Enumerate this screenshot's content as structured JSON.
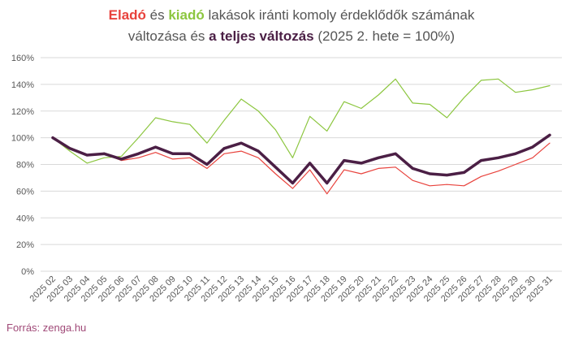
{
  "title": {
    "line1": [
      {
        "text": "Eladó",
        "color": "#e8423c",
        "bold": true
      },
      {
        "text": " és ",
        "color": "#555555",
        "bold": false
      },
      {
        "text": "kiadó",
        "color": "#8cc63f",
        "bold": true
      },
      {
        "text": " lakások iránti komoly érdeklődők számának",
        "color": "#555555",
        "bold": false
      }
    ],
    "line2": [
      {
        "text": "változása és ",
        "color": "#555555",
        "bold": false
      },
      {
        "text": "a teljes változás",
        "color": "#4b1f45",
        "bold": true
      },
      {
        "text": " (2025 2. hete = 100%)",
        "color": "#555555",
        "bold": false
      }
    ]
  },
  "source": "Forrás: zenga.hu",
  "chart_data": {
    "type": "line",
    "categories": [
      "2025 02",
      "2025 03",
      "2025 04",
      "2025 05",
      "2025 06",
      "2025 07",
      "2025 08",
      "2025 09",
      "2025 10",
      "2025 11",
      "2025 12",
      "2025 13",
      "2025 14",
      "2025 15",
      "2025 16",
      "2025 17",
      "2025 18",
      "2025 19",
      "2025 20",
      "2025 21",
      "2025 22",
      "2025 23",
      "2025 24",
      "2025 25",
      "2025 26",
      "2025 27",
      "2025 28",
      "2025 29",
      "2025 30",
      "2025 31"
    ],
    "y_ticks": [
      "0%",
      "20%",
      "40%",
      "60%",
      "80%",
      "100%",
      "120%",
      "140%",
      "160%"
    ],
    "ylim": [
      0,
      160
    ],
    "grid": true,
    "legend": "none",
    "series": [
      {
        "key": "elado",
        "color": "#e8423c",
        "width": 1.2,
        "values": [
          100,
          92,
          87,
          88,
          83,
          85,
          89,
          84,
          85,
          77,
          88,
          90,
          85,
          73,
          62,
          76,
          58,
          76,
          73,
          77,
          78,
          68,
          64,
          65,
          64,
          71,
          75,
          80,
          85,
          96
        ]
      },
      {
        "key": "kiado",
        "color": "#8cc63f",
        "width": 1.2,
        "values": [
          100,
          90,
          81,
          85,
          86,
          100,
          115,
          112,
          110,
          96,
          113,
          129,
          120,
          106,
          85,
          116,
          105,
          127,
          122,
          132,
          144,
          126,
          125,
          115,
          130,
          143,
          144,
          134,
          136,
          139
        ]
      },
      {
        "key": "teljes",
        "color": "#4b1f45",
        "width": 3.5,
        "values": [
          100,
          92,
          87,
          88,
          84,
          88,
          93,
          88,
          88,
          80,
          92,
          96,
          90,
          78,
          66,
          81,
          66,
          83,
          81,
          85,
          88,
          77,
          73,
          72,
          74,
          83,
          85,
          88,
          93,
          102
        ]
      }
    ]
  }
}
